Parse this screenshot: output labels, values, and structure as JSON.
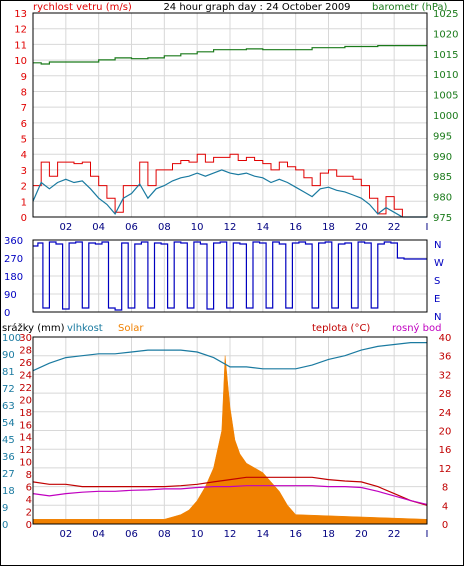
{
  "chart_data": [
    {
      "type": "line",
      "title": "24 hour graph day : 24 October 2009",
      "left_axis_label": "rychlost vetru (m/s)",
      "right_axis_label": "barometr (hPa)",
      "x_ticks": [
        "02",
        "04",
        "06",
        "08",
        "10",
        "12",
        "14",
        "16",
        "18",
        "20",
        "22",
        "I"
      ],
      "left_ylim": [
        0,
        13
      ],
      "left_ticks": [
        "0",
        "1",
        "2",
        "3",
        "4",
        "5",
        "6",
        "7",
        "8",
        "9",
        "10",
        "11",
        "12",
        "13"
      ],
      "right_ylim": [
        975,
        1025
      ],
      "right_ticks": [
        "975",
        "980",
        "985",
        "990",
        "995",
        "1000",
        "1005",
        "1010",
        "1015",
        "1020",
        "1025"
      ],
      "grid": true,
      "colors": {
        "gust": "#e00000",
        "wind": "#1a7aa0",
        "barometer": "#1a7a1a",
        "left_axis": "#e00000",
        "right_axis": "#1a7a1a"
      },
      "series": [
        {
          "key": "gust",
          "x": [
            0,
            0.5,
            1,
            1.5,
            2,
            2.5,
            3,
            3.5,
            4,
            4.5,
            5,
            5.5,
            6,
            6.5,
            7,
            7.5,
            8,
            8.5,
            9,
            9.5,
            10,
            10.5,
            11,
            11.5,
            12,
            12.5,
            13,
            13.5,
            14,
            14.5,
            15,
            15.5,
            16,
            16.5,
            17,
            17.5,
            18,
            18.5,
            19,
            19.5,
            20,
            20.5,
            21,
            21.5,
            22,
            22.5,
            23,
            24
          ],
          "values": [
            2,
            3.5,
            2.6,
            3.5,
            3.5,
            3.4,
            3.5,
            2.6,
            2,
            1.2,
            0.3,
            2,
            2,
            3.5,
            2,
            3,
            3,
            3.4,
            3.6,
            3.5,
            4,
            3.5,
            3.8,
            3.8,
            4,
            3.6,
            3.8,
            3.6,
            3.4,
            3,
            3.5,
            3.2,
            3,
            2.5,
            2,
            2.8,
            3,
            2.6,
            2.6,
            2.4,
            2,
            1.2,
            0.2,
            1.3,
            0.5,
            0,
            0,
            0
          ]
        },
        {
          "key": "wind",
          "x": [
            0,
            0.5,
            1,
            1.5,
            2,
            2.5,
            3,
            3.5,
            4,
            4.5,
            5,
            5.5,
            6,
            6.5,
            7,
            7.5,
            8,
            8.5,
            9,
            9.5,
            10,
            10.5,
            11,
            11.5,
            12,
            12.5,
            13,
            13.5,
            14,
            14.5,
            15,
            15.5,
            16,
            16.5,
            17,
            17.5,
            18,
            18.5,
            19,
            19.5,
            20,
            20.5,
            21,
            21.5,
            22,
            22.5,
            23,
            24
          ],
          "values": [
            1,
            2.2,
            1.8,
            2.2,
            2.4,
            2.2,
            2.3,
            1.8,
            1.2,
            0.8,
            0.2,
            1.2,
            1.5,
            2.1,
            1.2,
            1.8,
            2,
            2.3,
            2.5,
            2.6,
            2.8,
            2.6,
            2.8,
            3,
            2.8,
            2.7,
            2.8,
            2.6,
            2.5,
            2.2,
            2.4,
            2.2,
            1.9,
            1.6,
            1.3,
            1.8,
            1.9,
            1.7,
            1.6,
            1.4,
            1.2,
            0.8,
            0.2,
            0.6,
            0.3,
            0,
            0,
            0
          ]
        },
        {
          "key": "barometer",
          "x": [
            0,
            0.5,
            1,
            2,
            3,
            4,
            5,
            6,
            7,
            8,
            9,
            10,
            11,
            12,
            13,
            14,
            15,
            16,
            17,
            18,
            19,
            20,
            21,
            22,
            23,
            24
          ],
          "values": [
            1012.8,
            1012.5,
            1013,
            1013,
            1013,
            1013.5,
            1014,
            1013.8,
            1014,
            1014.5,
            1015,
            1015.5,
            1016,
            1016,
            1016.2,
            1016,
            1016,
            1016,
            1016.5,
            1016.5,
            1016.8,
            1016.8,
            1017,
            1017,
            1017,
            1017
          ]
        }
      ]
    },
    {
      "type": "line",
      "title": "",
      "left_ylim": [
        0,
        360
      ],
      "left_ticks": [
        "0",
        "90",
        "180",
        "270",
        "360"
      ],
      "right_ticks": [
        "N",
        "E",
        "S",
        "W",
        "N"
      ],
      "colors": {
        "direction": "#0000c0",
        "axis": "#0000c0"
      },
      "series": [
        {
          "key": "direction",
          "x": [
            0,
            0.3,
            0.6,
            1,
            1.4,
            1.8,
            2.2,
            2.6,
            3,
            3.4,
            3.8,
            4.2,
            4.6,
            5,
            5.4,
            5.8,
            6.2,
            6.6,
            7,
            7.4,
            7.8,
            8.2,
            8.6,
            9,
            9.4,
            9.8,
            10.2,
            10.6,
            11,
            11.4,
            11.8,
            12.2,
            12.6,
            13,
            13.4,
            13.8,
            14.2,
            14.6,
            15,
            15.4,
            15.8,
            16.2,
            16.6,
            17,
            17.4,
            17.8,
            18.2,
            18.6,
            19,
            19.4,
            19.8,
            20.2,
            20.6,
            21,
            21.4,
            21.8,
            22.2,
            22.6,
            23,
            24
          ],
          "values": [
            330,
            345,
            20,
            350,
            340,
            15,
            345,
            350,
            20,
            345,
            340,
            350,
            20,
            10,
            345,
            20,
            340,
            350,
            20,
            345,
            340,
            20,
            350,
            345,
            20,
            350,
            340,
            15,
            345,
            350,
            20,
            345,
            340,
            20,
            350,
            345,
            20,
            350,
            340,
            20,
            345,
            350,
            340,
            20,
            345,
            350,
            20,
            340,
            345,
            20,
            350,
            345,
            20,
            340,
            350,
            345,
            270,
            265,
            265,
            265
          ]
        }
      ]
    },
    {
      "type": "line",
      "title": "",
      "top_labels": {
        "rain": "srážky (mm)",
        "humidity": "vlhkost",
        "solar": "Solar",
        "temperature": "teplota (°C)",
        "dewpoint": "rosný bod"
      },
      "rain_ticks": [
        "0",
        "2",
        "4",
        "6",
        "8",
        "10",
        "12",
        "14",
        "16",
        "18",
        "20",
        "22",
        "24",
        "26",
        "28",
        "30"
      ],
      "humidity_ticks": [
        "0",
        "9",
        "18",
        "27",
        "36",
        "45",
        "54",
        "63",
        "72",
        "81",
        "90",
        "100"
      ],
      "temperature_ticks": [
        "0",
        "4",
        "8",
        "12",
        "16",
        "20",
        "24",
        "28",
        "32",
        "36",
        "40"
      ],
      "temperature_ylim": [
        0,
        40
      ],
      "humidity_ylim": [
        0,
        100
      ],
      "colors": {
        "rain": "#c00000",
        "humidity": "#1a7aa0",
        "solar": "#f08000",
        "temperature": "#c00000",
        "dewpoint": "#c000c0"
      },
      "series": [
        {
          "key": "humidity",
          "x": [
            0,
            1,
            2,
            3,
            4,
            5,
            6,
            7,
            8,
            9,
            10,
            11,
            12,
            13,
            14,
            15,
            16,
            17,
            18,
            19,
            20,
            21,
            22,
            23,
            24
          ],
          "values": [
            82,
            86,
            89,
            90,
            91,
            91,
            92,
            93,
            93,
            93,
            92,
            89,
            84,
            84,
            83,
            83,
            83,
            85,
            88,
            90,
            93,
            95,
            96,
            97,
            97
          ]
        },
        {
          "key": "temperature",
          "x": [
            0,
            1,
            2,
            3,
            4,
            5,
            6,
            7,
            8,
            9,
            10,
            11,
            12,
            13,
            14,
            15,
            16,
            17,
            18,
            19,
            20,
            21,
            22,
            23,
            24
          ],
          "values": [
            9,
            8.5,
            8.5,
            8,
            8,
            8,
            8,
            8,
            8,
            8.2,
            8.5,
            9,
            9.5,
            10,
            10,
            10,
            10,
            10,
            9.5,
            9.2,
            9,
            8,
            6.5,
            5,
            4
          ]
        },
        {
          "key": "dewpoint",
          "x": [
            0,
            1,
            2,
            3,
            4,
            5,
            6,
            7,
            8,
            9,
            10,
            11,
            12,
            13,
            14,
            15,
            16,
            17,
            18,
            19,
            20,
            21,
            22,
            23,
            24
          ],
          "values": [
            6.5,
            6,
            6.5,
            6.8,
            7,
            7,
            7.2,
            7.3,
            7.5,
            7.5,
            7.8,
            8,
            8,
            8.2,
            8.2,
            8.2,
            8.2,
            8.2,
            8,
            8,
            7.8,
            7,
            6,
            5,
            4.2
          ]
        },
        {
          "key": "solar",
          "x": [
            0,
            8,
            8.5,
            9,
            9.5,
            10,
            10.5,
            11,
            11.5,
            11.7,
            12,
            12.3,
            12.6,
            13,
            13.5,
            14,
            14.5,
            15,
            15.5,
            16,
            24
          ],
          "values": [
            1,
            1,
            1.5,
            2,
            3,
            5,
            8,
            12,
            20,
            36,
            25,
            18,
            15,
            13,
            12,
            11,
            9,
            7,
            4,
            2,
            1
          ]
        }
      ]
    }
  ]
}
